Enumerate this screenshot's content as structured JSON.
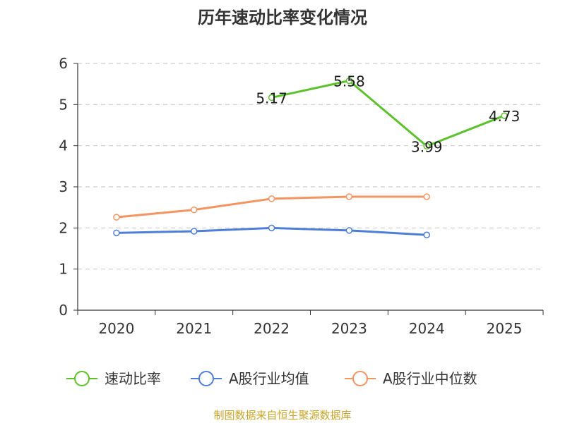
{
  "colors": {
    "speed": "#5cc12a",
    "avg": "#4e7fd8",
    "median": "#f49462",
    "grid": "#cccccc",
    "axis": "#333333",
    "source": "#c8a52a"
  },
  "chart_data": {
    "type": "line",
    "title": "历年速动比率变化情况",
    "categories": [
      "2020",
      "2021",
      "2022",
      "2023",
      "2024",
      "2025"
    ],
    "ylim": [
      0,
      6
    ],
    "yticks": [
      "0",
      "1",
      "2",
      "3",
      "4",
      "5",
      "6"
    ],
    "series": [
      {
        "name": "速动比率",
        "values": [
          null,
          null,
          5.17,
          5.58,
          3.99,
          4.73
        ],
        "labels": [
          "",
          "",
          "5.17",
          "5.58",
          "3.99",
          "4.73"
        ]
      },
      {
        "name": "A股行业均值",
        "values": [
          1.88,
          1.92,
          2.0,
          1.94,
          1.83,
          null
        ]
      },
      {
        "name": "A股行业中位数",
        "values": [
          2.26,
          2.44,
          2.71,
          2.76,
          2.76,
          null
        ]
      }
    ],
    "legend": {
      "placement": "bottom"
    },
    "source": "制图数据来自恒生聚源数据库"
  }
}
